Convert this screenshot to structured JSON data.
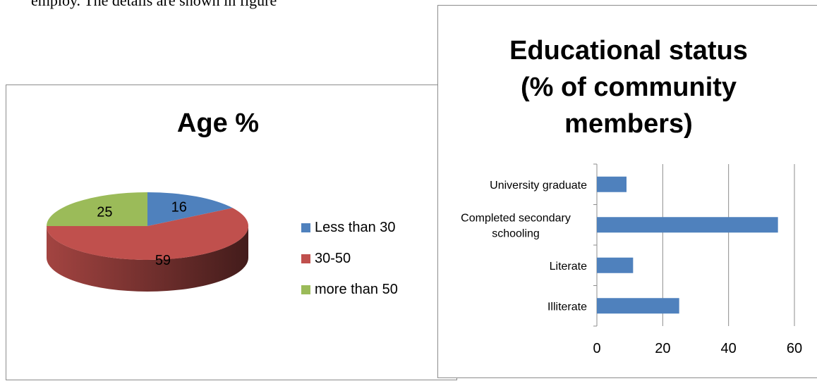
{
  "document": {
    "snippet": "employ. The details are shown in figure"
  },
  "chart_data": [
    {
      "type": "pie",
      "title": "Age %",
      "categories": [
        "Less than 30",
        "30-50",
        "more than 50"
      ],
      "values": [
        16,
        59,
        25
      ],
      "colors": [
        "#4f81bd",
        "#c0504d",
        "#9bbb59"
      ],
      "legend_position": "right",
      "style": "3d"
    },
    {
      "type": "bar",
      "orientation": "horizontal",
      "title_lines": [
        "Educational status",
        "(% of community",
        "members)"
      ],
      "categories": [
        "University graduate",
        "Completed secondary schooling",
        "Literate",
        "Illiterate"
      ],
      "category_label_lines": [
        [
          "University graduate"
        ],
        [
          "Completed secondary",
          "schooling"
        ],
        [
          "Literate"
        ],
        [
          "Illiterate"
        ]
      ],
      "values": [
        9,
        55,
        11,
        25
      ],
      "xlim": [
        0,
        60
      ],
      "xticks": [
        "0",
        "20",
        "40",
        "60"
      ],
      "grid": true,
      "color": "#4f81bd"
    }
  ]
}
